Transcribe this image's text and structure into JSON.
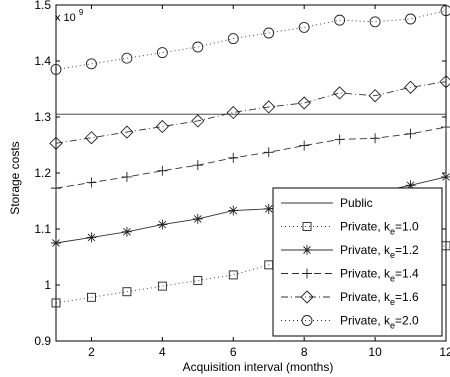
{
  "chart_data": {
    "type": "line",
    "xlabel": "Acquisition interval (months)",
    "ylabel": "Storage costs",
    "exponent_label": "x 10",
    "exponent_power": "9",
    "xlim": [
      1,
      12
    ],
    "ylim": [
      0.9,
      1.5
    ],
    "xticks": [
      "2",
      "4",
      "6",
      "8",
      "10",
      "12"
    ],
    "yticks": [
      "0.9",
      "1",
      "1.1",
      "1.2",
      "1.3",
      "1.4",
      "1.5"
    ],
    "grid": false,
    "legend_position": "bottom-right",
    "x": [
      1,
      2,
      3,
      4,
      5,
      6,
      7,
      8,
      9,
      10,
      11,
      12
    ],
    "series": [
      {
        "name": "Public",
        "label_main": "Public",
        "label_sub": "",
        "marker": "none",
        "dash": "solid",
        "values": [
          1.305,
          1.305,
          1.305,
          1.305,
          1.305,
          1.305,
          1.305,
          1.305,
          1.305,
          1.305,
          1.305,
          1.305
        ]
      },
      {
        "name": "Private, ke=1.0",
        "label_main": "Private, k",
        "label_sub": "e",
        "label_tail": "=1.0",
        "marker": "square",
        "dash": "dotted",
        "values": [
          0.968,
          0.978,
          0.988,
          0.998,
          1.008,
          1.018,
          1.036,
          1.046,
          1.055,
          1.06,
          1.065,
          1.07
        ]
      },
      {
        "name": "Private, ke=1.2",
        "label_main": "Private, k",
        "label_sub": "e",
        "label_tail": "=1.2",
        "marker": "asterisk",
        "dash": "solid",
        "values": [
          1.075,
          1.085,
          1.095,
          1.108,
          1.118,
          1.133,
          1.136,
          1.145,
          1.155,
          1.165,
          1.178,
          1.193
        ]
      },
      {
        "name": "Private, ke=1.4",
        "label_main": "Private, k",
        "label_sub": "e",
        "label_tail": "=1.4",
        "marker": "plus",
        "dash": "dashed",
        "values": [
          1.173,
          1.183,
          1.193,
          1.204,
          1.214,
          1.227,
          1.237,
          1.249,
          1.26,
          1.262,
          1.27,
          1.282
        ]
      },
      {
        "name": "Private, ke=1.6",
        "label_main": "Private, k",
        "label_sub": "e",
        "label_tail": "=1.6",
        "marker": "diamond",
        "dash": "dashdot",
        "values": [
          1.253,
          1.263,
          1.273,
          1.283,
          1.293,
          1.308,
          1.318,
          1.325,
          1.343,
          1.338,
          1.353,
          1.363
        ]
      },
      {
        "name": "Private, ke=2.0",
        "label_main": "Private, k",
        "label_sub": "e",
        "label_tail": "=2.0",
        "marker": "circle",
        "dash": "dotted",
        "values": [
          1.385,
          1.395,
          1.405,
          1.415,
          1.425,
          1.44,
          1.45,
          1.46,
          1.473,
          1.47,
          1.475,
          1.49
        ]
      }
    ]
  }
}
